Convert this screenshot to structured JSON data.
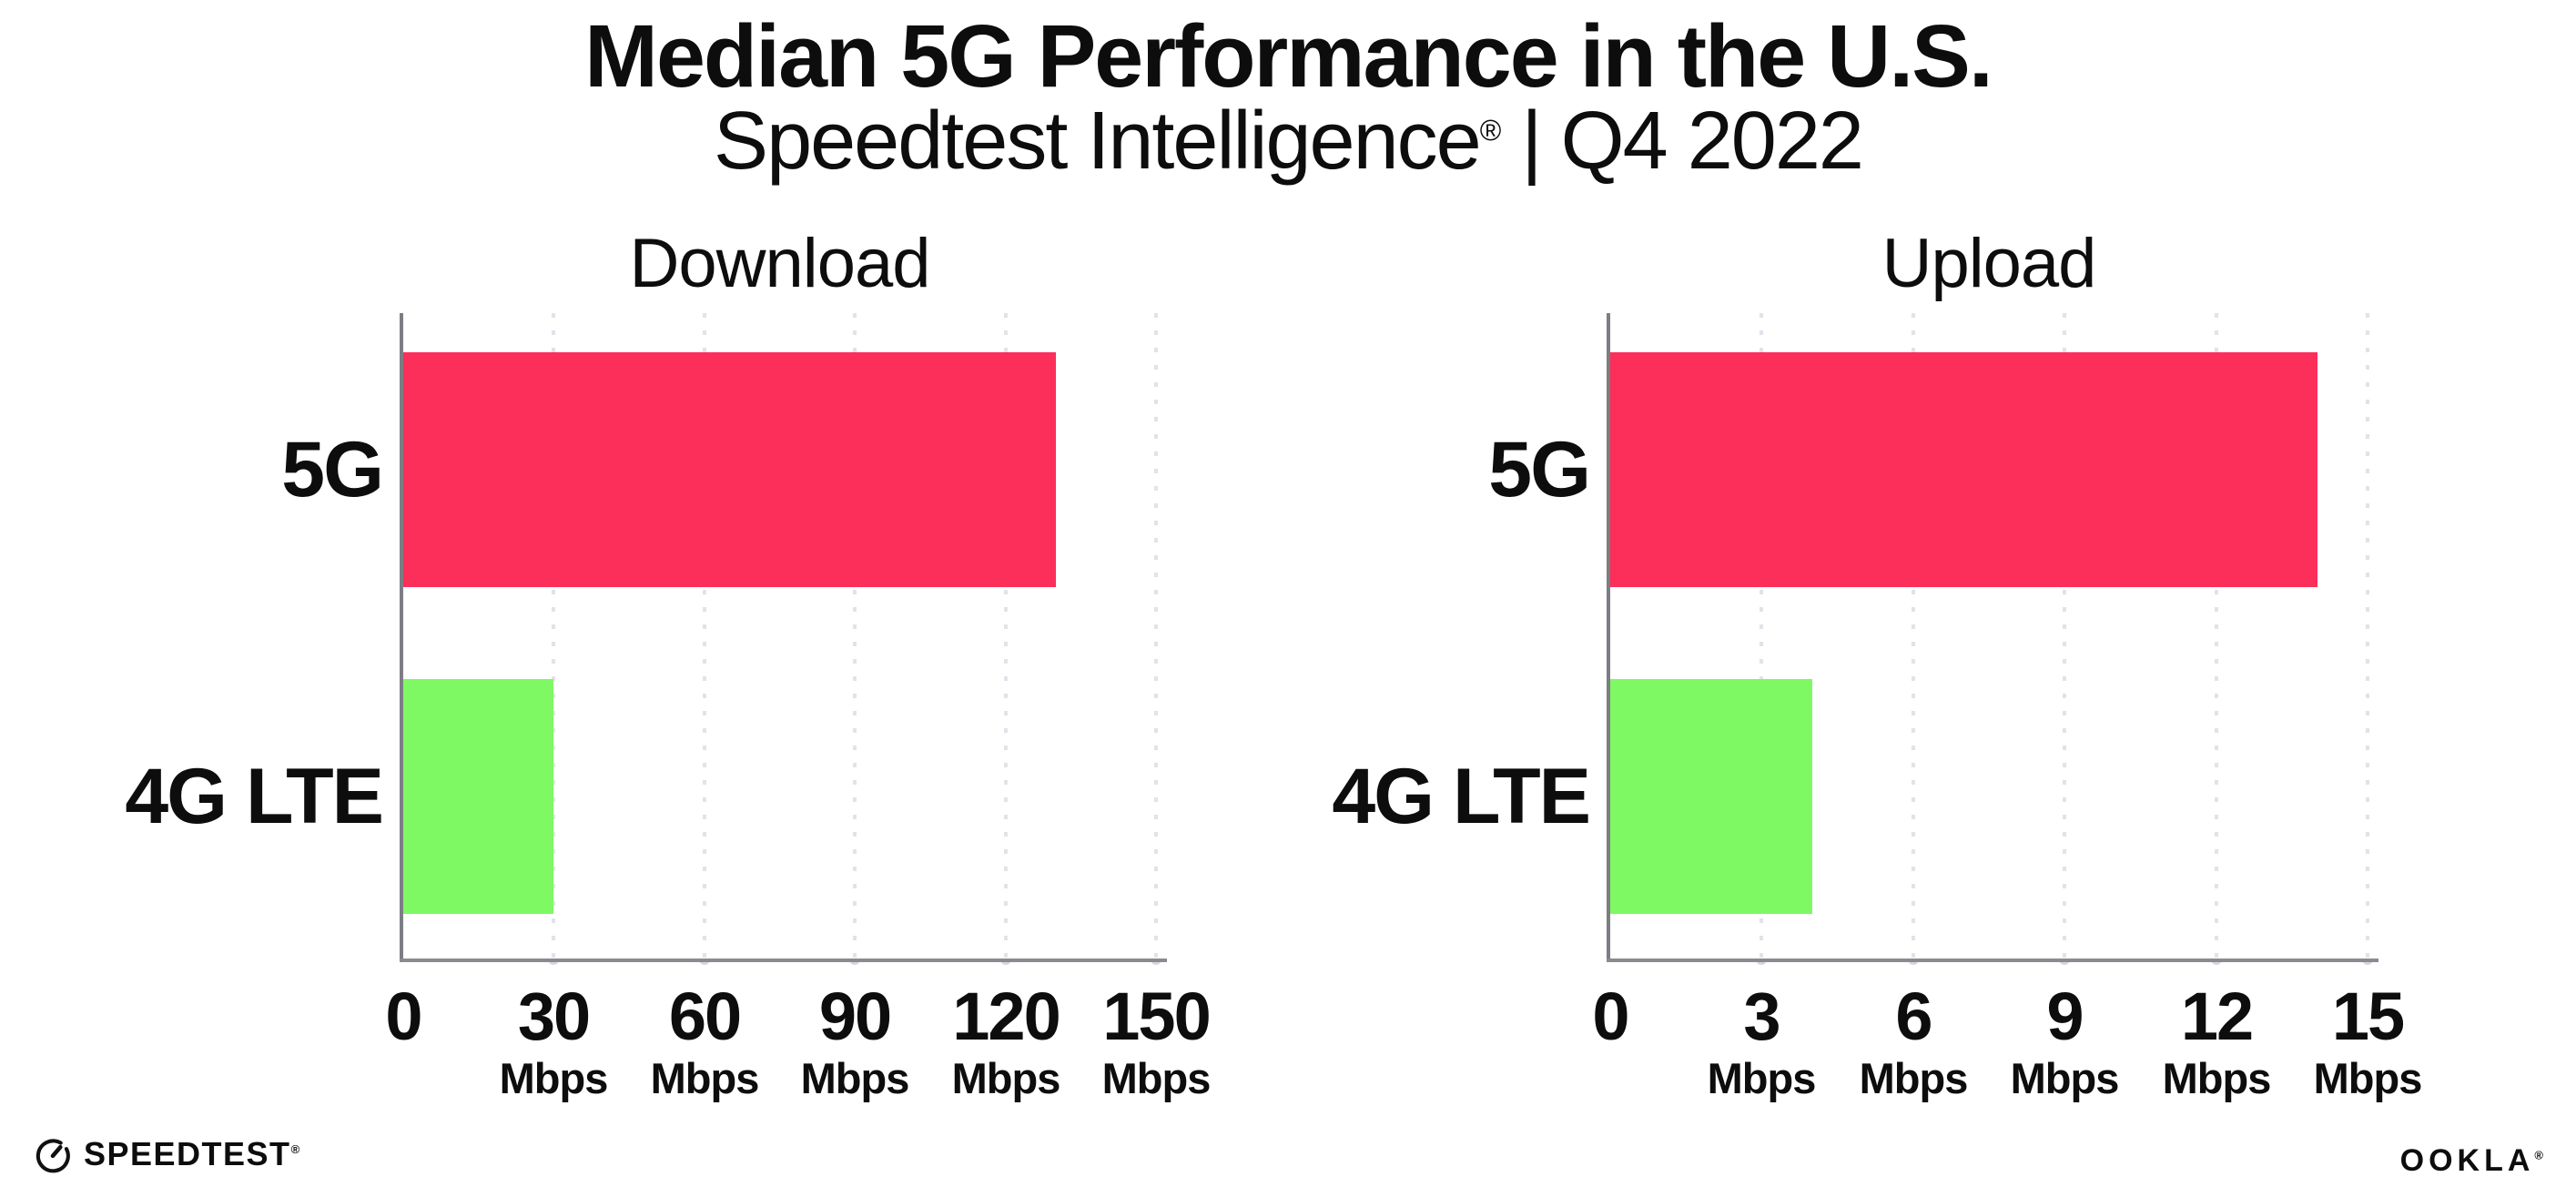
{
  "header": {
    "title": "Median 5G Performance in the U.S.",
    "subtitle_brand": "Speedtest Intelligence",
    "subtitle_reg": "®",
    "subtitle_divider": "|",
    "subtitle_period": "Q4 2022"
  },
  "chart_data": [
    {
      "type": "bar",
      "orientation": "horizontal",
      "title": "Download",
      "unit": "Mbps",
      "categories": [
        "5G",
        "4G LTE"
      ],
      "values": [
        130,
        30
      ],
      "xlim": [
        0,
        150
      ],
      "xticks": [
        0,
        30,
        60,
        90,
        120,
        150
      ],
      "series_colors": [
        "#FC2E5A",
        "#7EF964"
      ],
      "grid": "dotted-vertical",
      "legend": "none"
    },
    {
      "type": "bar",
      "orientation": "horizontal",
      "title": "Upload",
      "unit": "Mbps",
      "categories": [
        "5G",
        "4G LTE"
      ],
      "values": [
        14,
        4
      ],
      "xlim": [
        0,
        15
      ],
      "xticks": [
        0,
        3,
        6,
        9,
        12,
        15
      ],
      "series_colors": [
        "#FC2E5A",
        "#7EF964"
      ],
      "grid": "dotted-vertical",
      "legend": "none"
    }
  ],
  "colors": {
    "bar_5g": "#FC2E5A",
    "bar_4g_lte": "#7EF964",
    "gridline": "#E2E2EB",
    "axis": "#8A8A91",
    "text": "#0D0D0D",
    "background": "#FFFFFF"
  },
  "footer": {
    "speedtest_label": "SPEEDTEST",
    "speedtest_reg": "®",
    "ookla_label": "OOKLA",
    "ookla_reg": "®"
  }
}
